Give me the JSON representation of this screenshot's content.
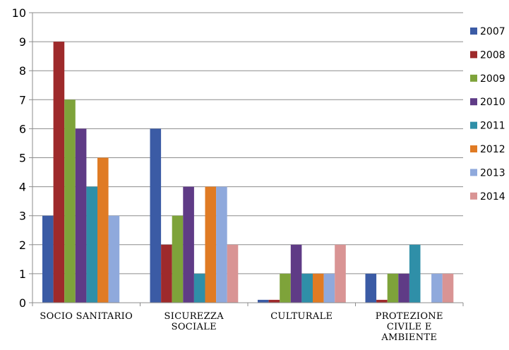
{
  "chart_data": {
    "type": "bar",
    "categories": [
      [
        "SOCIO SANITARIO"
      ],
      [
        "SICUREZZA",
        "SOCIALE"
      ],
      [
        "CULTURALE"
      ],
      [
        "PROTEZIONE",
        "CIVILE E",
        "AMBIENTE"
      ]
    ],
    "ylim": [
      0,
      10
    ],
    "yticks": [
      0,
      1,
      2,
      3,
      4,
      5,
      6,
      7,
      8,
      9,
      10
    ],
    "grid": true,
    "legend_position": "right",
    "series": [
      {
        "name": "2007",
        "color": "#3b5ba5",
        "values": [
          3,
          6,
          0.1,
          1
        ]
      },
      {
        "name": "2008",
        "color": "#9e2a2b",
        "values": [
          9,
          2,
          0.1,
          0.1
        ]
      },
      {
        "name": "2009",
        "color": "#7ea33a",
        "values": [
          7,
          3,
          1,
          1
        ]
      },
      {
        "name": "2010",
        "color": "#5f3b86",
        "values": [
          6,
          4,
          2,
          1
        ]
      },
      {
        "name": "2011",
        "color": "#2f8fa8",
        "values": [
          4,
          1,
          1,
          2
        ]
      },
      {
        "name": "2012",
        "color": "#e07b24",
        "values": [
          5,
          4,
          1,
          0
        ]
      },
      {
        "name": "2013",
        "color": "#8fa9dc",
        "values": [
          3,
          4,
          1,
          1
        ]
      },
      {
        "name": "2014",
        "color": "#d99494",
        "values": [
          0,
          2,
          2,
          1
        ]
      }
    ]
  }
}
